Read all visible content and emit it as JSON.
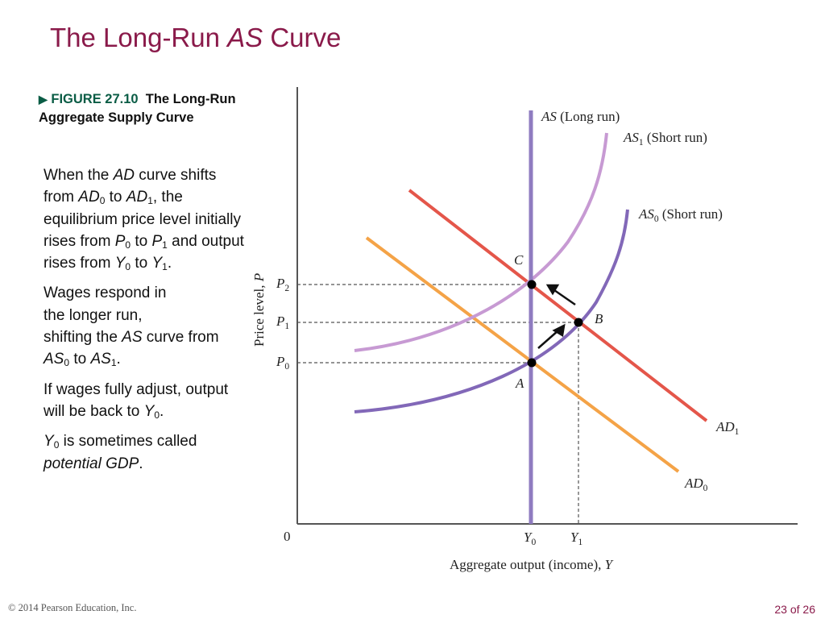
{
  "slide": {
    "title_prefix": "The Long-Run ",
    "title_italic": "AS",
    "title_suffix": " Curve",
    "figure_number": "FIGURE 27.10",
    "figure_title": "The Long-Run Aggregate Supply Curve",
    "footer_copyright": "© 2014 Pearson Education, Inc.",
    "page_indicator": "23 of 26"
  },
  "paragraphs": [
    "When the AD curve shifts from AD0 to AD1, the equilibrium price level initially rises from P0 to P1 and output rises from Y0 to Y1.",
    "Wages respond in the longer run, shifting the AS curve from AS0 to AS1.",
    "If wages fully adjust, output will be back to Y0.",
    "Y0 is sometimes called potential GDP."
  ],
  "diagram": {
    "y_axis_label": "Price level, P",
    "x_axis_label": "Aggregate output (income), Y",
    "origin_label": "0",
    "curves": {
      "as_long_run": "AS (Long run)",
      "as1": "AS1 (Short run)",
      "as0": "AS0 (Short run)",
      "ad1": "AD1",
      "ad0": "AD0"
    },
    "points": {
      "a": "A",
      "b": "B",
      "c": "C"
    },
    "price_levels": [
      "P0",
      "P1",
      "P2"
    ],
    "outputs": [
      "Y0",
      "Y1"
    ],
    "colors": {
      "long_run_as": "#8f7cc0",
      "as1": "#c79ad3",
      "as0": "#8268b8",
      "ad1": "#e4564a",
      "ad0": "#f4a347",
      "title": "#8a1a4a",
      "figure_label": "#0a5c45"
    }
  }
}
